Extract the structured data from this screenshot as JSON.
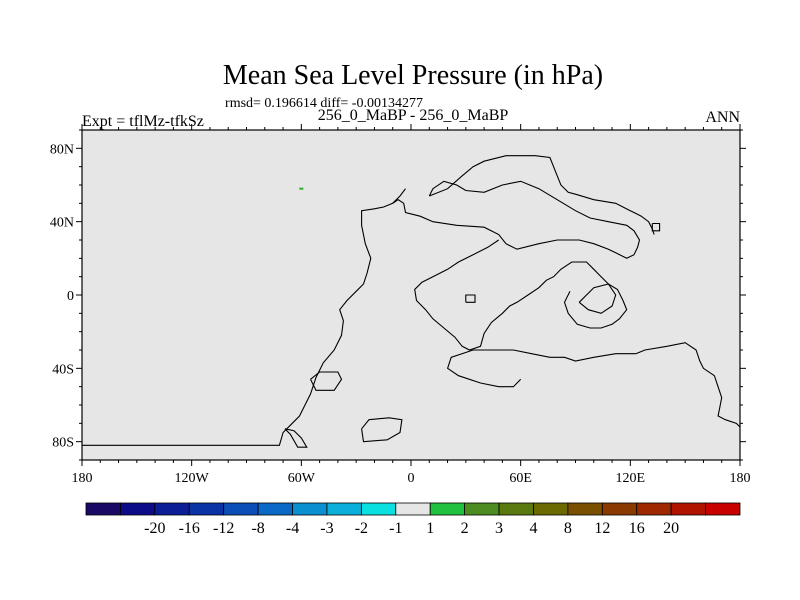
{
  "chart_data": {
    "type": "heatmap",
    "title": "Mean Sea Level Pressure (in hPa)",
    "subtitle": "rmsd= 0.196614 diff= -0.00134277",
    "center_label": "256_0_MaBP - 256_0_MaBP",
    "left_label": "Expt = tflMz-tfkSz",
    "right_label": "ANN",
    "xlim": [
      -180,
      180
    ],
    "ylim": [
      -90,
      90
    ],
    "x_ticks": [
      {
        "value": -180,
        "label": "180"
      },
      {
        "value": -120,
        "label": "120W"
      },
      {
        "value": -60,
        "label": "60W"
      },
      {
        "value": 0,
        "label": "0"
      },
      {
        "value": 60,
        "label": "60E"
      },
      {
        "value": 120,
        "label": "120E"
      },
      {
        "value": 180,
        "label": "180"
      }
    ],
    "y_ticks": [
      {
        "value": 80,
        "label": "80N"
      },
      {
        "value": 40,
        "label": "40N"
      },
      {
        "value": 0,
        "label": "0"
      },
      {
        "value": -40,
        "label": "40S"
      },
      {
        "value": -80,
        "label": "80S"
      }
    ],
    "field_fill_color": "#e6e6e6",
    "features": [
      {
        "type": "small-positive-spot",
        "lon": -60,
        "lat": 58,
        "color": "#22b422"
      }
    ],
    "colorbar": {
      "colors": [
        "#1a0a66",
        "#0c0c88",
        "#0b1e96",
        "#0b33a6",
        "#0b4eb8",
        "#0a68c6",
        "#0a8fd0",
        "#0ab0da",
        "#0ae0e0",
        "#e6e6e6",
        "#20c040",
        "#4c8c20",
        "#5a7a10",
        "#6a6a00",
        "#7a5000",
        "#8a3a00",
        "#a02800",
        "#b01400",
        "#c80000"
      ],
      "labels": [
        "-20",
        "-16",
        "-12",
        "-8",
        "-4",
        "-3",
        "-2",
        "-1",
        "1",
        "2",
        "3",
        "4",
        "8",
        "12",
        "16",
        "20"
      ]
    },
    "coastlines_lonlat": [
      [
        [
          -180,
          -82
        ],
        [
          -72,
          -82
        ],
        [
          -70,
          -75
        ],
        [
          -66,
          -71
        ],
        [
          -61,
          -66
        ],
        [
          -58,
          -60
        ],
        [
          -55,
          -54
        ],
        [
          -52,
          -45
        ],
        [
          -48,
          -37
        ],
        [
          -42,
          -30
        ],
        [
          -38,
          -22
        ],
        [
          -37,
          -14
        ],
        [
          -39,
          -8
        ],
        [
          -35,
          -3
        ],
        [
          -30,
          2
        ],
        [
          -26,
          6
        ],
        [
          -24,
          12
        ],
        [
          -22,
          20
        ],
        [
          -25,
          28
        ],
        [
          -27,
          38
        ],
        [
          -27,
          46
        ],
        [
          -20,
          47
        ],
        [
          -15,
          48
        ],
        [
          -10,
          50
        ],
        [
          -7,
          52
        ],
        [
          -4,
          50
        ],
        [
          -3,
          45
        ],
        [
          5,
          43
        ],
        [
          12,
          40
        ],
        [
          25,
          38
        ],
        [
          40,
          37
        ],
        [
          48,
          33
        ],
        [
          52,
          28
        ],
        [
          58,
          25
        ],
        [
          70,
          28
        ],
        [
          80,
          30
        ],
        [
          92,
          30
        ],
        [
          100,
          28
        ],
        [
          108,
          25
        ],
        [
          112,
          23
        ],
        [
          118,
          20
        ],
        [
          122,
          22
        ],
        [
          124,
          26
        ],
        [
          125,
          30
        ],
        [
          122,
          35
        ],
        [
          118,
          38
        ],
        [
          108,
          40
        ],
        [
          98,
          42
        ],
        [
          90,
          46
        ],
        [
          80,
          52
        ],
        [
          70,
          58
        ],
        [
          60,
          62
        ],
        [
          50,
          60
        ],
        [
          40,
          56
        ],
        [
          30,
          57
        ],
        [
          25,
          60
        ],
        [
          18,
          62
        ],
        [
          12,
          58
        ],
        [
          10,
          54
        ]
      ],
      [
        [
          -10,
          50
        ],
        [
          -6,
          54
        ],
        [
          -3,
          58
        ]
      ],
      [
        [
          10,
          54
        ],
        [
          20,
          58
        ],
        [
          28,
          65
        ],
        [
          34,
          70
        ],
        [
          40,
          73
        ],
        [
          52,
          76
        ],
        [
          68,
          76
        ],
        [
          76,
          75
        ],
        [
          78,
          70
        ],
        [
          80,
          65
        ],
        [
          82,
          60
        ],
        [
          86,
          56
        ],
        [
          90,
          55
        ],
        [
          100,
          52
        ],
        [
          112,
          50
        ],
        [
          120,
          46
        ],
        [
          126,
          43
        ],
        [
          130,
          40
        ],
        [
          132,
          36
        ],
        [
          133,
          33
        ]
      ],
      [
        [
          132,
          39
        ],
        [
          136,
          39
        ],
        [
          136,
          35
        ],
        [
          132,
          35
        ],
        [
          132,
          39
        ]
      ],
      [
        [
          48,
          30
        ],
        [
          42,
          26
        ],
        [
          34,
          22
        ],
        [
          26,
          18
        ],
        [
          20,
          14
        ],
        [
          12,
          10
        ],
        [
          6,
          7
        ],
        [
          2,
          3
        ],
        [
          3,
          -3
        ],
        [
          8,
          -8
        ],
        [
          12,
          -13
        ],
        [
          18,
          -18
        ],
        [
          24,
          -23
        ],
        [
          28,
          -28
        ],
        [
          32,
          -30
        ],
        [
          38,
          -28
        ],
        [
          40,
          -21
        ],
        [
          44,
          -15
        ],
        [
          50,
          -10
        ],
        [
          54,
          -6
        ],
        [
          58,
          -4
        ],
        [
          64,
          0
        ],
        [
          70,
          4
        ],
        [
          74,
          8
        ],
        [
          78,
          10
        ],
        [
          82,
          14
        ],
        [
          88,
          18
        ],
        [
          96,
          18
        ],
        [
          100,
          14
        ],
        [
          104,
          10
        ],
        [
          108,
          6
        ],
        [
          113,
          3
        ],
        [
          116,
          -3
        ],
        [
          118,
          -8
        ],
        [
          114,
          -13
        ],
        [
          110,
          -16
        ],
        [
          104,
          -18
        ],
        [
          98,
          -18
        ],
        [
          91,
          -16
        ],
        [
          86,
          -10
        ],
        [
          84,
          -4
        ],
        [
          87,
          2
        ]
      ],
      [
        [
          30,
          -4
        ],
        [
          30,
          0
        ],
        [
          35,
          0
        ],
        [
          35,
          -4
        ],
        [
          30,
          -4
        ]
      ],
      [
        [
          92,
          -4
        ],
        [
          97,
          -8
        ],
        [
          104,
          -10
        ],
        [
          110,
          -6
        ],
        [
          112,
          0
        ],
        [
          108,
          6
        ],
        [
          100,
          4
        ],
        [
          96,
          0
        ],
        [
          92,
          -4
        ]
      ],
      [
        [
          -55,
          -46
        ],
        [
          -50,
          -42
        ],
        [
          -40,
          -42
        ],
        [
          -38,
          -46
        ],
        [
          -42,
          -52
        ],
        [
          -52,
          -52
        ],
        [
          -55,
          -46
        ]
      ],
      [
        [
          -27,
          -73
        ],
        [
          -23,
          -68
        ],
        [
          -12,
          -67
        ],
        [
          -5,
          -68
        ],
        [
          -6,
          -75
        ],
        [
          -13,
          -79
        ],
        [
          -26,
          -80
        ],
        [
          -27,
          -73
        ]
      ],
      [
        [
          -69,
          -73
        ],
        [
          -66,
          -76
        ],
        [
          -62,
          -83
        ],
        [
          -57,
          -83
        ],
        [
          -60,
          -78
        ],
        [
          -64,
          -74
        ],
        [
          -69,
          -73
        ]
      ],
      [
        [
          123,
          -32
        ],
        [
          128,
          -30
        ],
        [
          140,
          -28
        ],
        [
          150,
          -26
        ],
        [
          156,
          -30
        ],
        [
          158,
          -36
        ],
        [
          160,
          -40
        ],
        [
          166,
          -44
        ],
        [
          170,
          -56
        ],
        [
          168,
          -66
        ],
        [
          172,
          -68
        ],
        [
          178,
          -70
        ],
        [
          180,
          -72
        ]
      ],
      [
        [
          60,
          -46
        ],
        [
          56,
          -50
        ],
        [
          48,
          -50
        ],
        [
          38,
          -48
        ],
        [
          26,
          -44
        ],
        [
          20,
          -40
        ],
        [
          22,
          -34
        ],
        [
          34,
          -30
        ],
        [
          46,
          -30
        ],
        [
          56,
          -30
        ],
        [
          66,
          -32
        ],
        [
          76,
          -34
        ],
        [
          84,
          -34
        ],
        [
          90,
          -36
        ],
        [
          100,
          -34
        ],
        [
          112,
          -32
        ],
        [
          123,
          -32
        ]
      ]
    ]
  }
}
